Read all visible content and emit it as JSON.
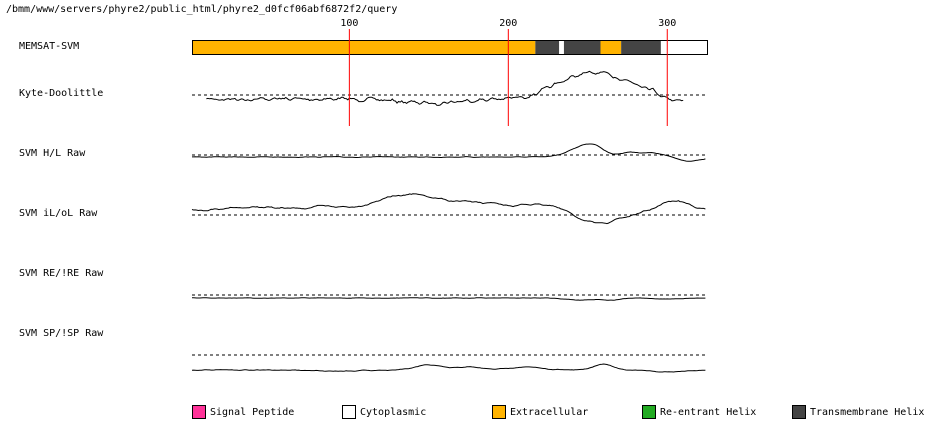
{
  "header": {
    "path": "/bmm/www/servers/phyre2/public_html/phyre2_d0fcf06abf6872f2/query"
  },
  "ruler": {
    "ticks": [
      100,
      200,
      300
    ]
  },
  "sequence": {
    "length": 324
  },
  "tracks": [
    {
      "id": "memsat",
      "label": "MEMSAT-SVM"
    },
    {
      "id": "kd",
      "label": "Kyte-Doolittle"
    },
    {
      "id": "hl",
      "label": "SVM H/L Raw"
    },
    {
      "id": "iloll",
      "label": "SVM iL/oL Raw"
    },
    {
      "id": "reire",
      "label": "SVM RE/!RE Raw"
    },
    {
      "id": "spisp",
      "label": "SVM SP/!SP Raw"
    }
  ],
  "memsat_segments": [
    {
      "start": 1,
      "end": 216,
      "type": "extracellular"
    },
    {
      "start": 217,
      "end": 231,
      "type": "transmembrane"
    },
    {
      "start": 232,
      "end": 234,
      "type": "cytoplasmic"
    },
    {
      "start": 235,
      "end": 257,
      "type": "transmembrane"
    },
    {
      "start": 258,
      "end": 270,
      "type": "extracellular"
    },
    {
      "start": 271,
      "end": 295,
      "type": "transmembrane"
    },
    {
      "start": 296,
      "end": 324,
      "type": "cytoplasmic"
    }
  ],
  "colors": {
    "signal": "#ff3399",
    "cytoplasmic": "#ffffff",
    "extracellular": "#ffb300",
    "reentrant": "#22aa22",
    "transmembrane": "#444444",
    "ruler": "#ff0000"
  },
  "legend": [
    {
      "key": "signal",
      "label": "Signal Peptide"
    },
    {
      "key": "cytoplasmic",
      "label": "Cytoplasmic"
    },
    {
      "key": "extracellular",
      "label": "Extracellular"
    },
    {
      "key": "reentrant",
      "label": "Re-entrant Helix"
    },
    {
      "key": "transmembrane",
      "label": "Transmembrane Helix"
    }
  ]
}
